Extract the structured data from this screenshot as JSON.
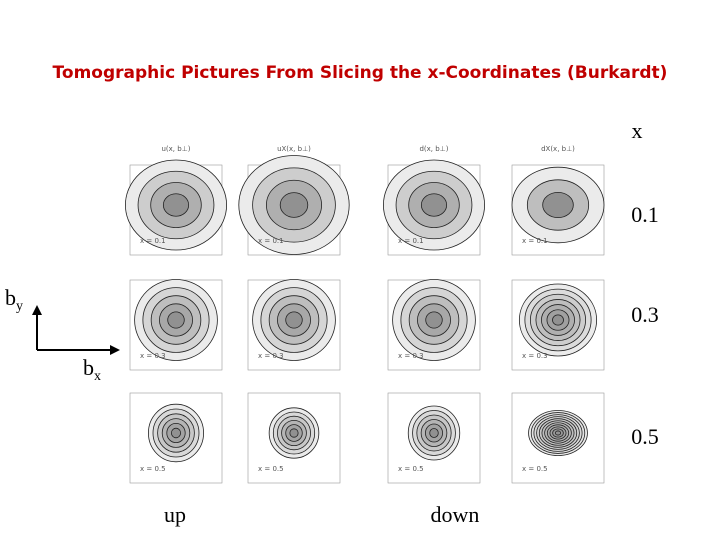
{
  "header": {
    "title": "Tomographic Pictures From Slicing the x-Coordinates (Burkardt)"
  },
  "x_label": "x",
  "row_labels": [
    "0.1",
    "0.3",
    "0.5"
  ],
  "axes": {
    "vertical": {
      "base": "b",
      "sub": "y"
    },
    "horizontal": {
      "base": "b",
      "sub": "x"
    }
  },
  "column_headers": [
    "u(x, b⊥)",
    "uX(x, b⊥)",
    "d(x, b⊥)",
    "dX(x, b⊥)"
  ],
  "panel_labels": [
    "x = 0.1",
    "x = 0.3",
    "x = 0.5"
  ],
  "flavors": [
    "up",
    "down"
  ]
}
